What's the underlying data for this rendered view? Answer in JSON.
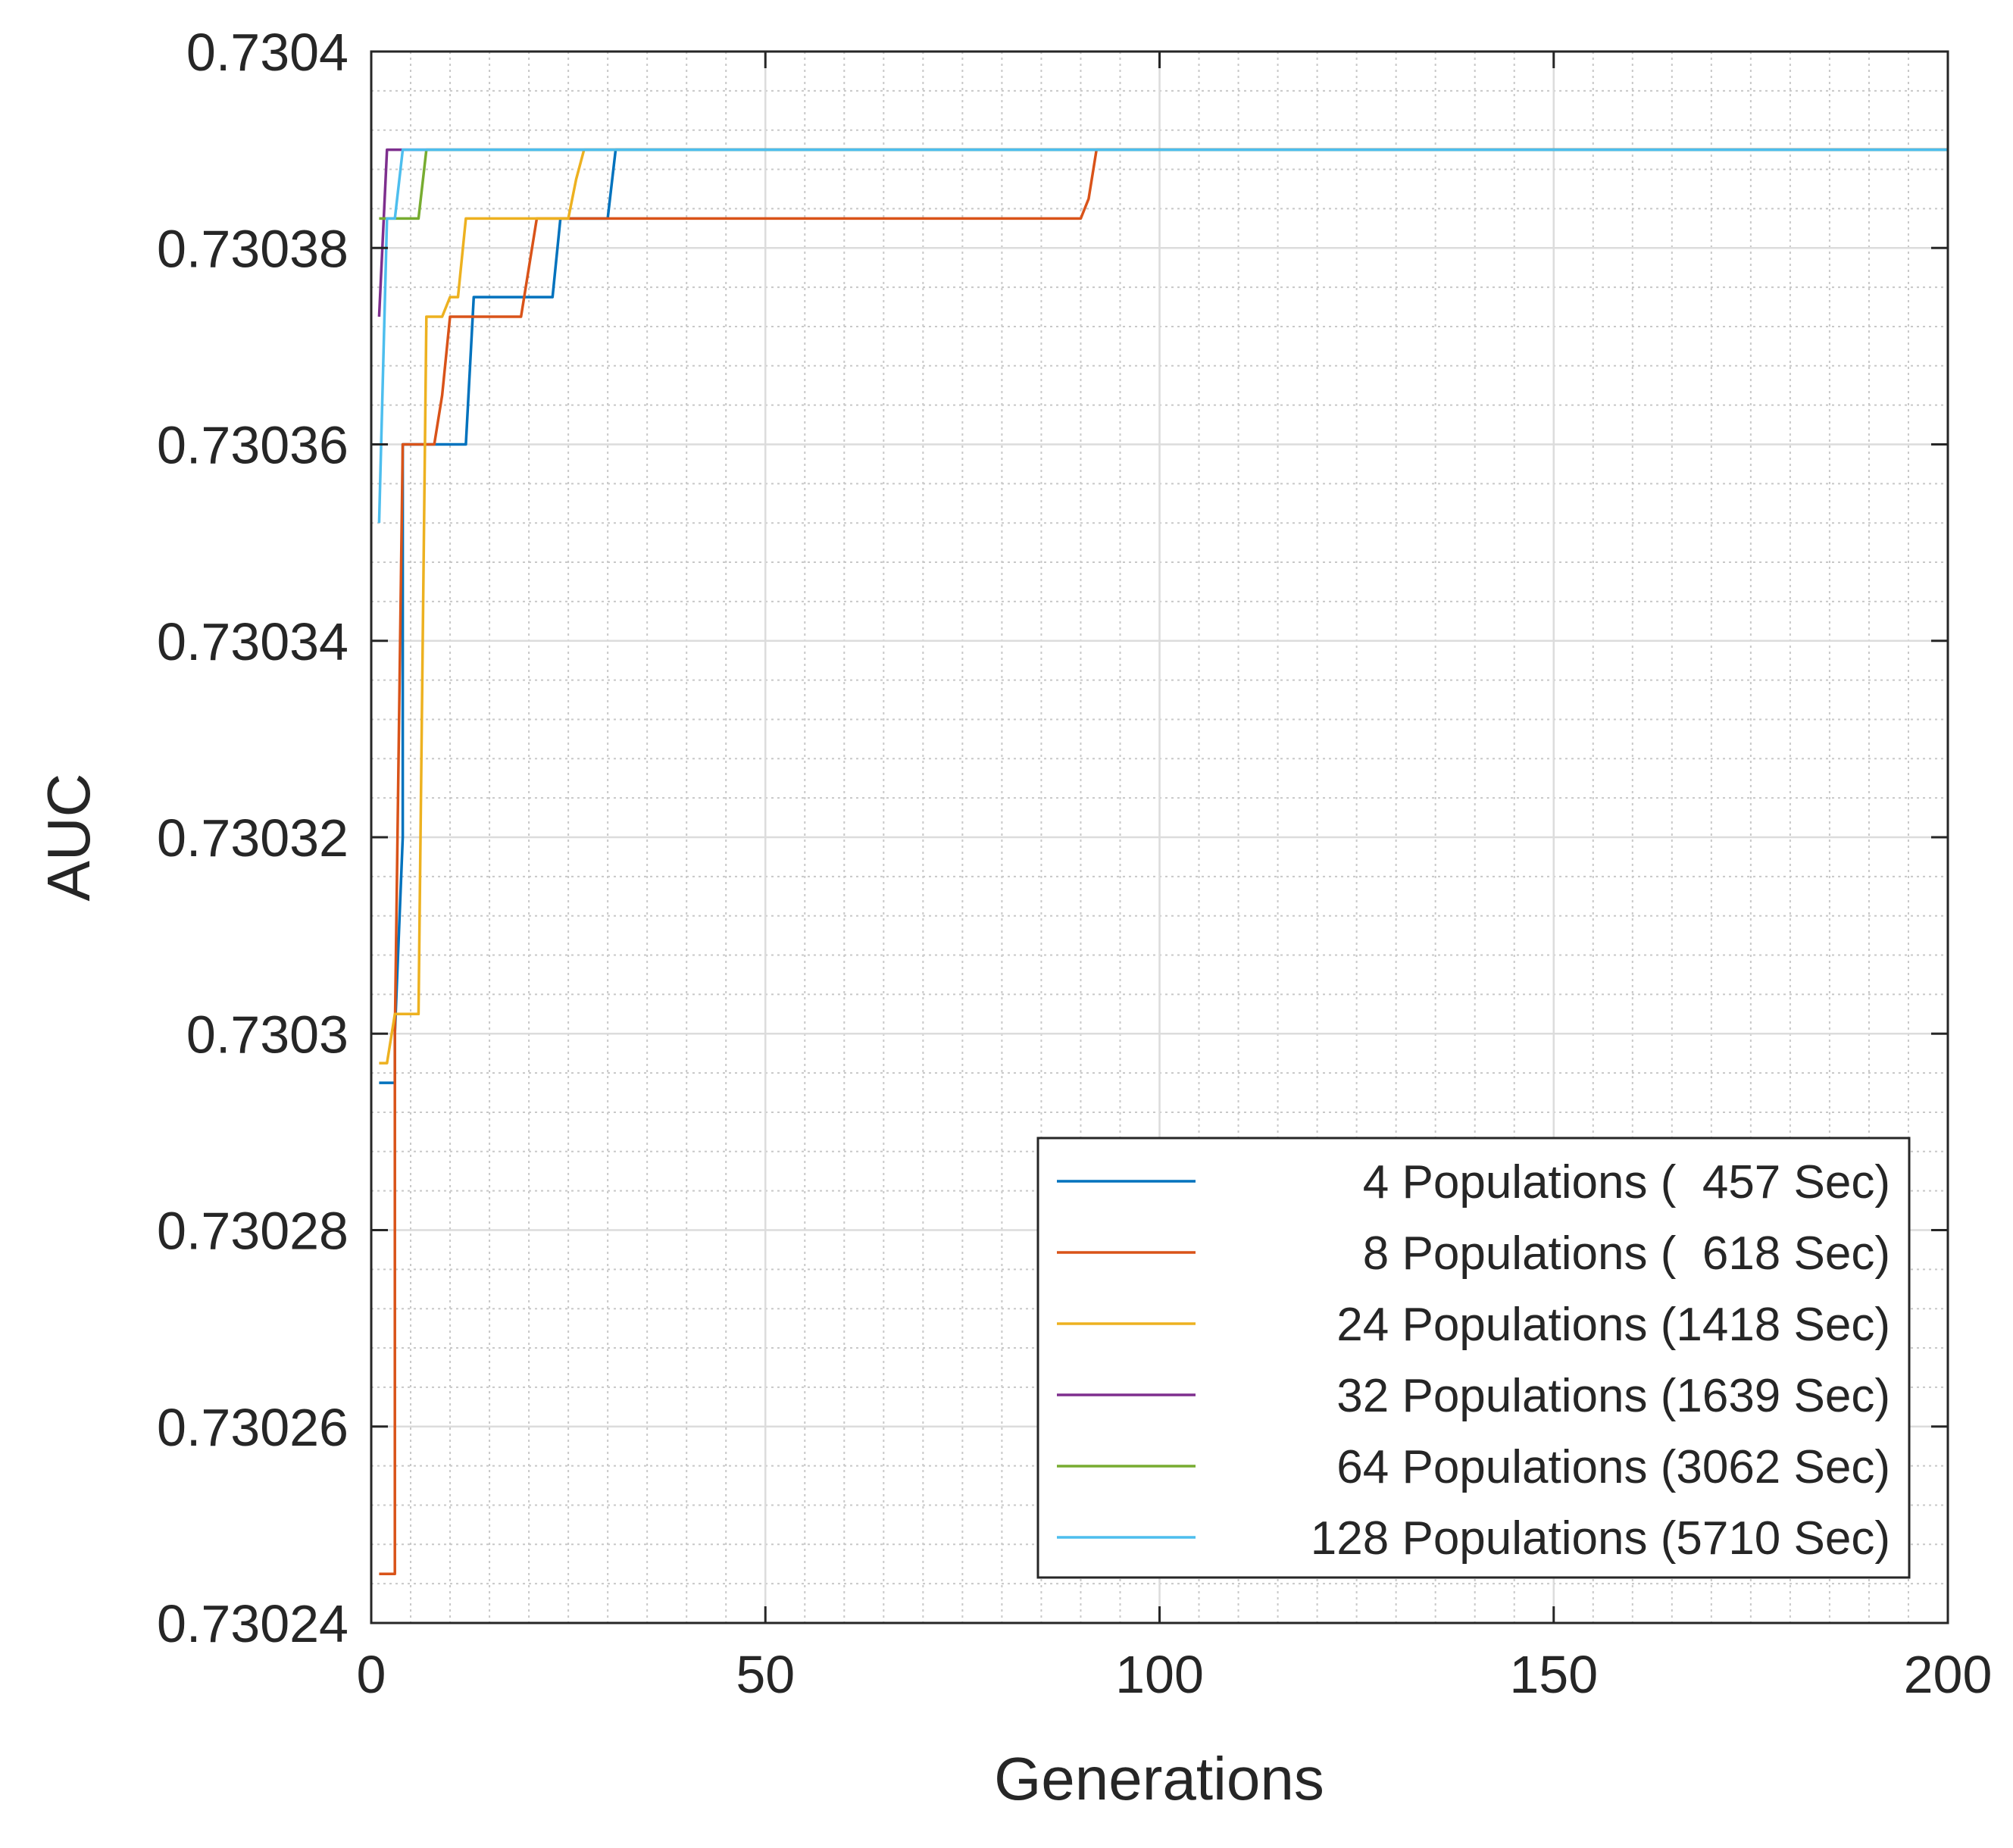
{
  "chart_data": {
    "type": "line",
    "title": "",
    "xlabel": "Generations",
    "ylabel": "AUC",
    "xlim": [
      0,
      200
    ],
    "ylim": [
      0.73024,
      0.7304
    ],
    "xticks": [
      0,
      50,
      100,
      150,
      200
    ],
    "xtick_labels": [
      "0",
      "50",
      "100",
      "150",
      "200"
    ],
    "yticks": [
      0.73024,
      0.73026,
      0.73028,
      0.7303,
      0.73032,
      0.73034,
      0.73036,
      0.73038,
      0.7304
    ],
    "ytick_labels": [
      "0.73024",
      "0.73026",
      "0.73028",
      "0.7303",
      "0.73032",
      "0.73034",
      "0.73036",
      "0.73038",
      "0.7304"
    ],
    "grid": true,
    "minor_grid": true,
    "legend_position": "bottom-right",
    "series": [
      {
        "name": "4 Populations (  457 Sec)",
        "color": "#0072BD",
        "x": [
          1,
          2,
          3,
          3,
          4,
          4,
          5,
          6,
          7,
          8,
          9,
          10,
          11,
          12,
          13,
          23,
          24,
          25,
          30,
          31,
          32,
          200
        ],
        "y": [
          0.730295,
          0.730295,
          0.730295,
          0.7303,
          0.73032,
          0.73036,
          0.73036,
          0.73036,
          0.73036,
          0.73036,
          0.73036,
          0.73036,
          0.73036,
          0.73036,
          0.730375,
          0.730375,
          0.730383,
          0.730383,
          0.730383,
          0.73039,
          0.73039,
          0.73039
        ]
      },
      {
        "name": "8 Populations (  618 Sec)",
        "color": "#D95319",
        "x": [
          1,
          2,
          3,
          3,
          4,
          5,
          8,
          9,
          10,
          19,
          20,
          21,
          90,
          91,
          92,
          200
        ],
        "y": [
          0.730245,
          0.730245,
          0.730245,
          0.7303,
          0.73036,
          0.73036,
          0.73036,
          0.730365,
          0.730373,
          0.730373,
          0.730378,
          0.730383,
          0.730383,
          0.730385,
          0.73039,
          0.73039
        ]
      },
      {
        "name": "24 Populations (1418 Sec)",
        "color": "#EDB120",
        "x": [
          1,
          2,
          3,
          5,
          6,
          7,
          8,
          9,
          10,
          11,
          12,
          13,
          25,
          26,
          27,
          200
        ],
        "y": [
          0.730297,
          0.730297,
          0.730302,
          0.730302,
          0.730302,
          0.730373,
          0.730373,
          0.730373,
          0.730375,
          0.730375,
          0.730383,
          0.730383,
          0.730383,
          0.730387,
          0.73039,
          0.73039
        ]
      },
      {
        "name": "32 Populations (1639 Sec)",
        "color": "#7E2F8E",
        "x": [
          1,
          2,
          3,
          200
        ],
        "y": [
          0.730373,
          0.73039,
          0.73039,
          0.73039
        ]
      },
      {
        "name": "64 Populations (3062 Sec)",
        "color": "#77AC30",
        "x": [
          1,
          2,
          5,
          6,
          7,
          200
        ],
        "y": [
          0.730383,
          0.730383,
          0.730383,
          0.730383,
          0.73039,
          0.73039
        ]
      },
      {
        "name": "128 Populations (5710 Sec)",
        "color": "#4DBEEE",
        "x": [
          1,
          2,
          3,
          4,
          200
        ],
        "y": [
          0.730352,
          0.730383,
          0.730383,
          0.73039,
          0.73039
        ]
      }
    ]
  }
}
